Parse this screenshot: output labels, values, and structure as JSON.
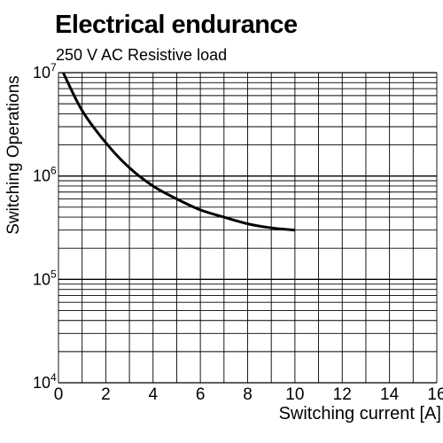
{
  "chart_data": {
    "type": "line",
    "title": "Electrical endurance",
    "subtitle": "250 V AC Resistive load",
    "xlabel": "Switching current [A]",
    "ylabel": "Switching Operations",
    "xlim": [
      0,
      16
    ],
    "ylim": [
      10000,
      10000000
    ],
    "yscale": "log",
    "grid": true,
    "x_ticks": [
      "0",
      "2",
      "4",
      "6",
      "8",
      "10",
      "12",
      "14",
      "16"
    ],
    "y_ticks": [
      {
        "base": "10",
        "exp": "4"
      },
      {
        "base": "10",
        "exp": "5"
      },
      {
        "base": "10",
        "exp": "6"
      },
      {
        "base": "10",
        "exp": "7"
      }
    ],
    "series": [
      {
        "x": [
          0.2,
          1,
          2,
          3,
          4,
          5,
          6,
          7,
          8,
          9,
          10
        ],
        "y": [
          10000000,
          4300000,
          2100000,
          1200000,
          800000,
          600000,
          470000,
          400000,
          345000,
          315000,
          300000
        ]
      }
    ],
    "line_color": "#000000"
  }
}
